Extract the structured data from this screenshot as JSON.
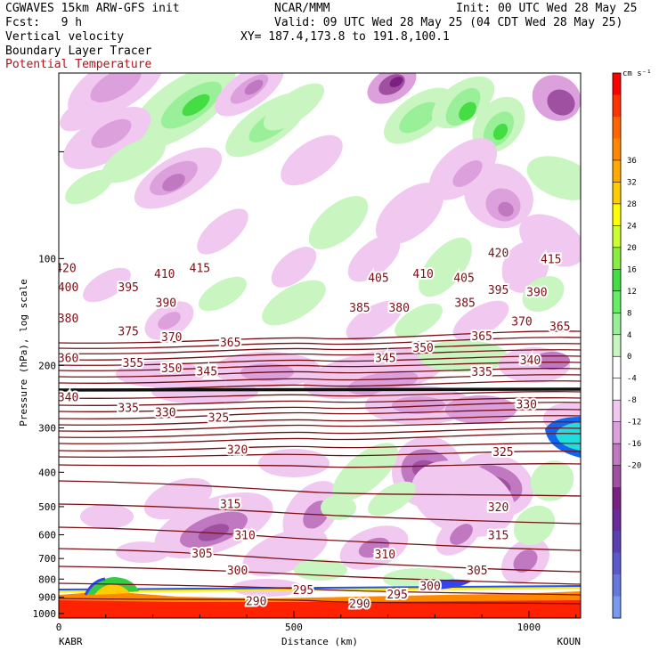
{
  "header": {
    "model": "CGWAVES 15km ARW-GFS init",
    "fcst": "Fcst:   9 h",
    "org": "NCAR/MMM",
    "init": "Init: 00 UTC Wed 28 May 25",
    "valid": "Valid: 09 UTC Wed 28 May 25 (04 CDT Wed 28 May 25)",
    "xy": "XY= 187.4,173.8 to 191.8,100.1",
    "field1": "Vertical velocity",
    "field2": "Boundary Layer Tracer",
    "field3": "Potential Temperature"
  },
  "colors": {
    "theta": "#7a1016",
    "tropopause_line": "#111111"
  },
  "chart_data": {
    "type": "heatmap",
    "title": "Vertical velocity",
    "xlabel": "Distance (km)",
    "ylabel": "Pressure (hPa), log scale",
    "x_ticks": [
      "0",
      "500",
      "1000"
    ],
    "x_tick_values": [
      0,
      500,
      1000
    ],
    "xlim": [
      0,
      1110
    ],
    "x_endpoints": {
      "left": "KABR",
      "right": "KOUN"
    },
    "y_ticks": [
      "100",
      "200",
      "300",
      "400",
      "500",
      "600",
      "700",
      "800",
      "900",
      "1000"
    ],
    "y_tick_values": [
      100,
      200,
      300,
      400,
      500,
      600,
      700,
      800,
      900,
      1000
    ],
    "y_scale": "log",
    "ylim": [
      1030,
      30
    ],
    "colorbar": {
      "unit": "cm s⁻¹",
      "labels": [
        "36",
        "32",
        "28",
        "24",
        "20",
        "16",
        "12",
        "8",
        "4",
        "0",
        "-4",
        "-8",
        "-12",
        "-16",
        "-20"
      ],
      "label_values": [
        36,
        32,
        28,
        24,
        20,
        16,
        12,
        8,
        4,
        0,
        -4,
        -8,
        -12,
        -16,
        -20
      ],
      "colors": [
        "#ff0000",
        "#ff3300",
        "#ff6600",
        "#ff8800",
        "#ffaa00",
        "#ffcc00",
        "#ffff00",
        "#ccff33",
        "#88ee44",
        "#44dd44",
        "#66ee66",
        "#99f099",
        "#c8f5c0",
        "#ffffff",
        "#ffffff",
        "#f0c8f0",
        "#dca0dc",
        "#c078c0",
        "#a050a0",
        "#7a2080",
        "#6a2a9a",
        "#5a40b0",
        "#5a5acc",
        "#6677dd",
        "#7799ee"
      ]
    },
    "theta_labels": [
      {
        "text": "420",
        "x": 15,
        "p": 106
      },
      {
        "text": "415",
        "x": 300,
        "p": 106
      },
      {
        "text": "410",
        "x": 225,
        "p": 110
      },
      {
        "text": "400",
        "x": 20,
        "p": 120
      },
      {
        "text": "395",
        "x": 148,
        "p": 120
      },
      {
        "text": "390",
        "x": 228,
        "p": 133
      },
      {
        "text": "405",
        "x": 680,
        "p": 113
      },
      {
        "text": "410",
        "x": 775,
        "p": 110
      },
      {
        "text": "405",
        "x": 862,
        "p": 113
      },
      {
        "text": "420",
        "x": 935,
        "p": 96
      },
      {
        "text": "415",
        "x": 1047,
        "p": 100
      },
      {
        "text": "395",
        "x": 935,
        "p": 122
      },
      {
        "text": "390",
        "x": 1017,
        "p": 124
      },
      {
        "text": "385",
        "x": 640,
        "p": 137
      },
      {
        "text": "380",
        "x": 724,
        "p": 137
      },
      {
        "text": "385",
        "x": 864,
        "p": 133
      },
      {
        "text": "380",
        "x": 20,
        "p": 147
      },
      {
        "text": "375",
        "x": 148,
        "p": 160
      },
      {
        "text": "370",
        "x": 240,
        "p": 166
      },
      {
        "text": "365",
        "x": 365,
        "p": 172
      },
      {
        "text": "360",
        "x": 20,
        "p": 190
      },
      {
        "text": "355",
        "x": 158,
        "p": 196
      },
      {
        "text": "350",
        "x": 240,
        "p": 203
      },
      {
        "text": "345",
        "x": 315,
        "p": 207
      },
      {
        "text": "345",
        "x": 695,
        "p": 190
      },
      {
        "text": "350",
        "x": 775,
        "p": 178
      },
      {
        "text": "365",
        "x": 900,
        "p": 165
      },
      {
        "text": "370",
        "x": 985,
        "p": 150
      },
      {
        "text": "365",
        "x": 1066,
        "p": 155
      },
      {
        "text": "340",
        "x": 1003,
        "p": 193
      },
      {
        "text": "335",
        "x": 900,
        "p": 208
      },
      {
        "text": "340",
        "x": 20,
        "p": 245
      },
      {
        "text": "335",
        "x": 148,
        "p": 263
      },
      {
        "text": "330",
        "x": 227,
        "p": 270
      },
      {
        "text": "325",
        "x": 340,
        "p": 280
      },
      {
        "text": "330",
        "x": 995,
        "p": 257
      },
      {
        "text": "320",
        "x": 380,
        "p": 345
      },
      {
        "text": "325",
        "x": 945,
        "p": 350
      },
      {
        "text": "315",
        "x": 365,
        "p": 490
      },
      {
        "text": "320",
        "x": 935,
        "p": 500
      },
      {
        "text": "310",
        "x": 396,
        "p": 600
      },
      {
        "text": "305",
        "x": 305,
        "p": 675
      },
      {
        "text": "310",
        "x": 694,
        "p": 680
      },
      {
        "text": "315",
        "x": 935,
        "p": 600
      },
      {
        "text": "300",
        "x": 380,
        "p": 755
      },
      {
        "text": "305",
        "x": 890,
        "p": 755
      },
      {
        "text": "300",
        "x": 790,
        "p": 835
      },
      {
        "text": "295",
        "x": 520,
        "p": 855
      },
      {
        "text": "295",
        "x": 720,
        "p": 880
      },
      {
        "text": "290",
        "x": 420,
        "p": 920
      },
      {
        "text": "290",
        "x": 640,
        "p": 935
      }
    ],
    "theta_levels": [
      420,
      415,
      410,
      405,
      400,
      395,
      390,
      385,
      380,
      375,
      370,
      365,
      360,
      355,
      350,
      345,
      340,
      335,
      330,
      325,
      320,
      315,
      310,
      305,
      300,
      295,
      290
    ]
  }
}
